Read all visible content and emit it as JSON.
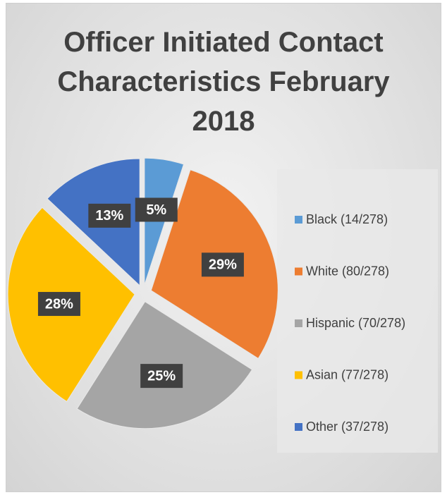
{
  "chart_data": {
    "type": "pie",
    "title": "Officer Initiated Contact Characteristics February 2018",
    "categories": [
      "Black (14/278)",
      "White (80/278)",
      "Hispanic (70/278)",
      "Asian (77/278)",
      "Other (37/278)"
    ],
    "values": [
      5,
      29,
      25,
      28,
      13
    ],
    "value_labels": [
      "5%",
      "29%",
      "25%",
      "28%",
      "13%"
    ],
    "colors": [
      "#5b9bd5",
      "#ed7d31",
      "#a5a5a5",
      "#ffc000",
      "#4472c4"
    ],
    "legend": "right"
  }
}
